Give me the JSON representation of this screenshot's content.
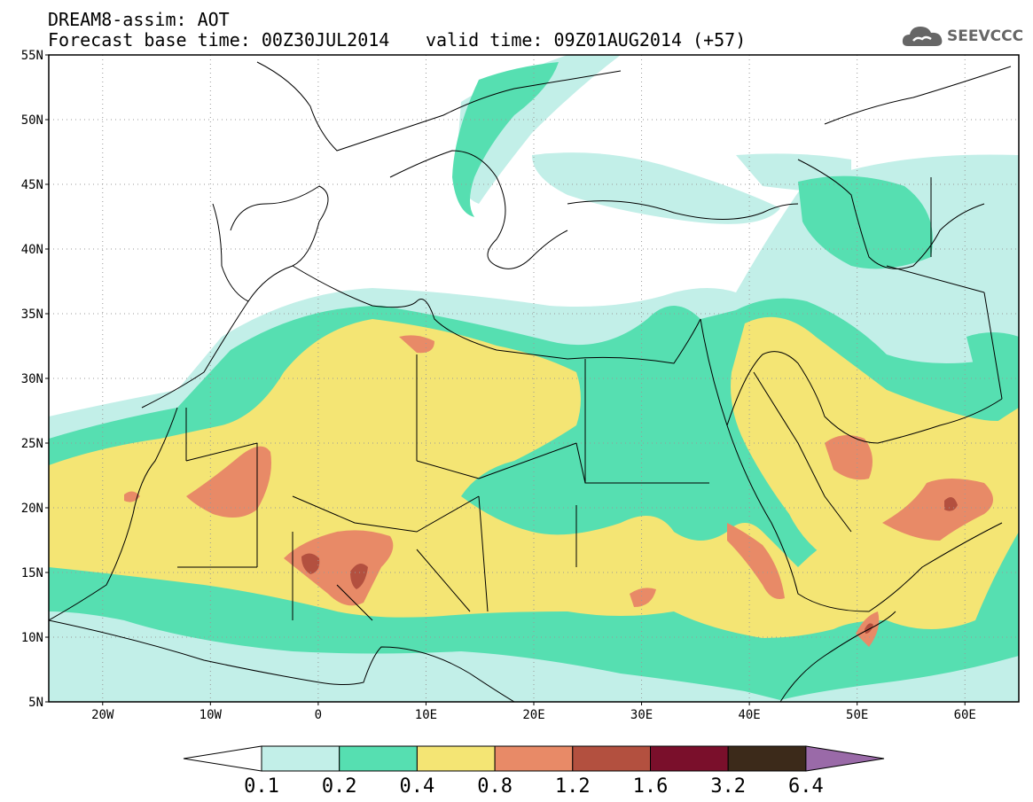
{
  "header": {
    "title": "DREAM8-assim: AOT",
    "base_time": "Forecast base time: 00Z30JUL2014",
    "valid_time": "valid time: 09Z01AUG2014 (+57)"
  },
  "logo": {
    "text": "SEEVCCC",
    "icon": "cloud-icon"
  },
  "map": {
    "lat_labels": [
      "55N",
      "50N",
      "45N",
      "40N",
      "35N",
      "30N",
      "25N",
      "20N",
      "15N",
      "10N",
      "5N"
    ],
    "lon_labels": [
      "20W",
      "10W",
      "0",
      "10E",
      "20E",
      "30E",
      "40E",
      "50E",
      "60E"
    ],
    "lat_range": [
      5,
      55
    ],
    "lon_range": [
      -25,
      65
    ],
    "grid": "dotted"
  },
  "colorbar": {
    "labels": [
      "0.1",
      "0.2",
      "0.4",
      "0.8",
      "1.2",
      "1.6",
      "3.2",
      "6.4"
    ],
    "colors": {
      "below": "#ffffff",
      "c1": "#c2efe8",
      "c2": "#56dfb1",
      "c3": "#f4e574",
      "c4": "#e88a67",
      "c5": "#b3503f",
      "c6": "#7a0f2b",
      "c7": "#3c2a1a",
      "above": "#9a6aa8"
    }
  }
}
